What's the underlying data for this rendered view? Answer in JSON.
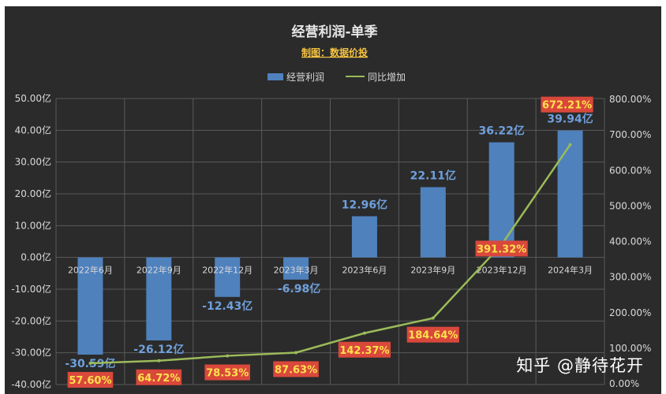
{
  "chart_data": {
    "type": "bar",
    "title": "经营利润-单季",
    "subtitle": "制图：数据价投",
    "categories": [
      "2022年6月",
      "2022年9月",
      "2022年12月",
      "2023年3月",
      "2023年6月",
      "2023年9月",
      "2023年12月",
      "2024年3月"
    ],
    "series": [
      {
        "name": "经营利润",
        "type": "bar",
        "axis": "left",
        "color": "#4f81bd",
        "values": [
          -30.59,
          -26.12,
          -12.43,
          -6.98,
          12.96,
          22.11,
          36.22,
          39.94
        ],
        "labels": [
          "-30.59亿",
          "-26.12亿",
          "-12.43亿",
          "-6.98亿",
          "12.96亿",
          "22.11亿",
          "36.22亿",
          "39.94亿"
        ]
      },
      {
        "name": "同比增加",
        "type": "line",
        "axis": "right",
        "color": "#9bbb59",
        "values": [
          57.6,
          64.72,
          78.53,
          87.63,
          142.37,
          184.64,
          391.32,
          672.21
        ],
        "labels": [
          "57.60%",
          "64.72%",
          "78.53%",
          "87.63%",
          "142.37%",
          "184.64%",
          "391.32%",
          "672.21%"
        ]
      }
    ],
    "y_left": {
      "range": [
        -40,
        50
      ],
      "ticks": [
        50,
        40,
        30,
        20,
        10,
        0,
        -10,
        -20,
        -30,
        -40
      ],
      "tick_labels": [
        "50.00亿",
        "40.00亿",
        "30.00亿",
        "20.00亿",
        "10.00亿",
        "0.00亿",
        "-10.00亿",
        "-20.00亿",
        "-30.00亿",
        "-40.00亿"
      ]
    },
    "y_right": {
      "range": [
        0,
        800
      ],
      "ticks": [
        800,
        700,
        600,
        500,
        400,
        300,
        200,
        100,
        0
      ],
      "tick_labels": [
        "800.00%",
        "700.00%",
        "600.00%",
        "500.00%",
        "400.00%",
        "300.00%",
        "200.00%",
        "100.00%",
        "0.00%"
      ]
    },
    "grid": true,
    "legend_position": "top"
  },
  "watermark": "知乎 @静待花开",
  "colors": {
    "background": "#2b2b2b",
    "grid": "#5a5a5a",
    "text": "#d9d9d9",
    "title": "#e6e6e6",
    "subtitle": "#f5c342",
    "bar_label": "#6fa0dc",
    "line_label_bg": "#d9483b",
    "line_label_text": "#ffe14d"
  }
}
